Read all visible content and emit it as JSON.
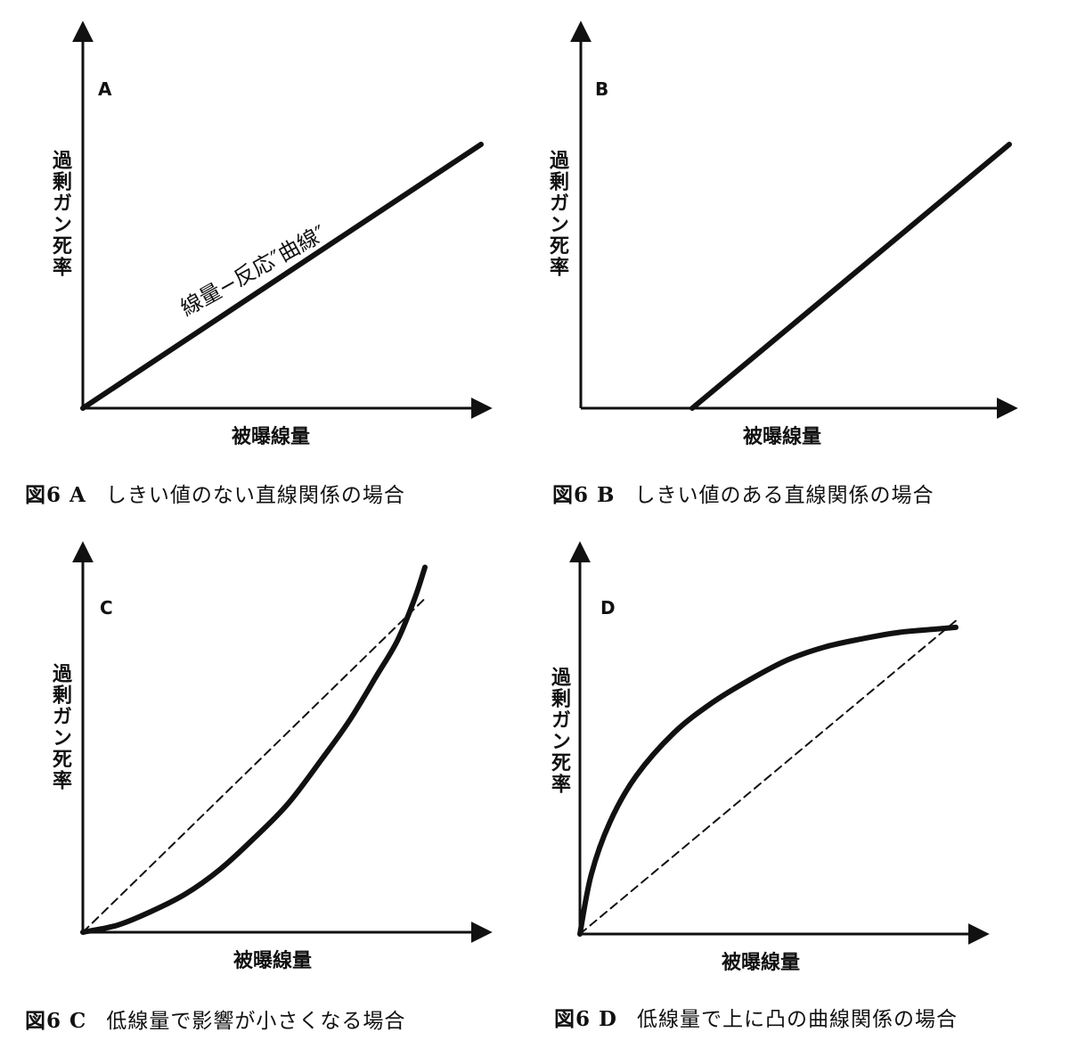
{
  "chart_data": [
    {
      "panel": "A",
      "type": "line",
      "caption_prefix": "図6 A",
      "caption_text": "しきい値のない直線関係の場合",
      "xlabel": "被曝線量",
      "ylabel": "過剰ガン死率",
      "annotation": "線量−反応″曲線″",
      "xlim": [
        0,
        100
      ],
      "ylim": [
        0,
        100
      ],
      "series": [
        {
          "style": "solid",
          "x": [
            0,
            100
          ],
          "y": [
            0,
            80
          ]
        }
      ]
    },
    {
      "panel": "B",
      "type": "line",
      "caption_prefix": "図6 B",
      "caption_text": "しきい値のある直線関係の場合",
      "xlabel": "被曝線量",
      "ylabel": "過剰ガン死率",
      "xlim": [
        0,
        100
      ],
      "ylim": [
        0,
        100
      ],
      "series": [
        {
          "style": "solid",
          "x": [
            26,
            100
          ],
          "y": [
            0,
            80
          ]
        }
      ]
    },
    {
      "panel": "C",
      "type": "line",
      "caption_prefix": "図6 C",
      "caption_text": "低線量で影響が小さくなる場合",
      "xlabel": "被曝線量",
      "ylabel": "過剰ガン死率",
      "xlim": [
        0,
        100
      ],
      "ylim": [
        0,
        100
      ],
      "series": [
        {
          "style": "solid",
          "x": [
            0,
            10,
            20,
            30,
            40,
            50,
            60,
            70,
            78,
            86,
            92,
            97,
            100
          ],
          "y": [
            0,
            2,
            6,
            11,
            18,
            27,
            37,
            50,
            61,
            74,
            84,
            96,
            105
          ]
        },
        {
          "style": "dashed",
          "x": [
            0,
            100
          ],
          "y": [
            0,
            96
          ]
        }
      ]
    },
    {
      "panel": "D",
      "type": "line",
      "caption_prefix": "図6 D",
      "caption_text": "低線量で上に凸の曲線関係の場合",
      "xlabel": "被曝線量",
      "ylabel": "過剰ガン死率",
      "xlim": [
        0,
        100
      ],
      "ylim": [
        0,
        100
      ],
      "series": [
        {
          "style": "solid",
          "x": [
            0,
            3,
            8,
            15,
            25,
            35,
            45,
            55,
            65,
            75,
            85,
            95,
            100
          ],
          "y": [
            0,
            18,
            34,
            48,
            61,
            70,
            77,
            83,
            87,
            89.5,
            91.5,
            92.5,
            93
          ]
        },
        {
          "style": "dashed",
          "x": [
            0,
            100
          ],
          "y": [
            0,
            95
          ]
        }
      ]
    }
  ]
}
